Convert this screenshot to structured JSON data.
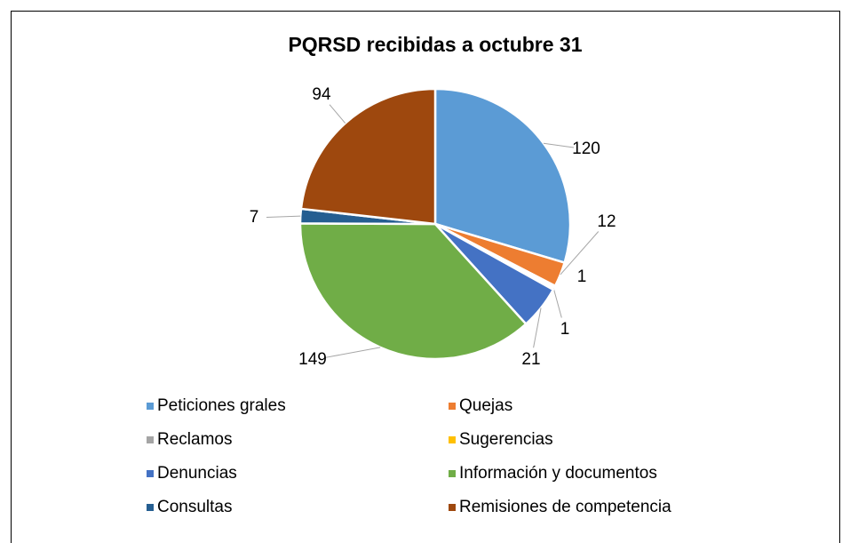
{
  "chart_data": {
    "type": "pie",
    "title": "PQRSD recibidas a octubre 31",
    "categories": [
      "Peticiones grales",
      "Quejas",
      "Reclamos",
      "Sugerencias",
      "Denuncias",
      "Información y documentos",
      "Consultas",
      "Remisiones de competencia"
    ],
    "values": [
      120,
      12,
      1,
      1,
      21,
      149,
      7,
      94
    ],
    "colors": [
      "#5b9bd5",
      "#ed7d31",
      "#a5a5a5",
      "#ffc000",
      "#4472c4",
      "#70ad47",
      "#255e91",
      "#9e480e"
    ],
    "legend": "bottom"
  }
}
